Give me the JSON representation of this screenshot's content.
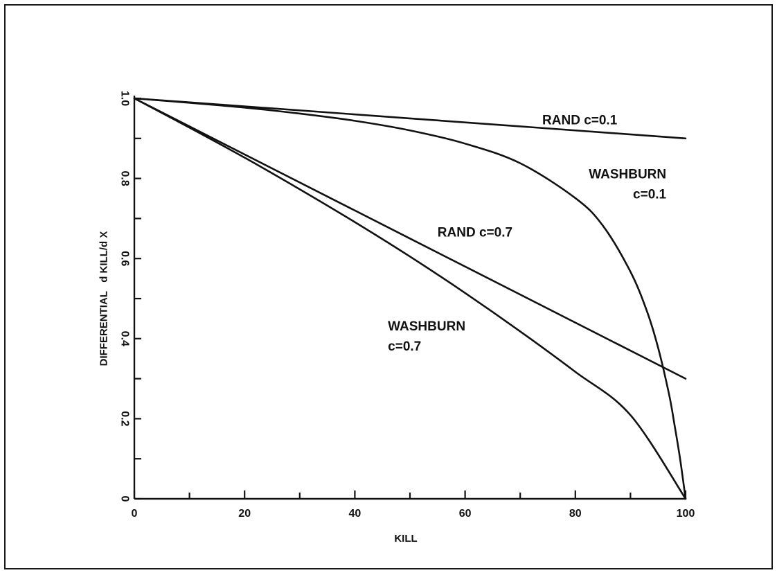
{
  "chart_data": {
    "type": "line",
    "xlabel": "KILL",
    "ylabel": "DIFFERENTIAL   d KILL/d X",
    "xlim": [
      0,
      100
    ],
    "ylim": [
      0,
      1.0
    ],
    "x_ticks": [
      0,
      20,
      40,
      60,
      80,
      100
    ],
    "x_tick_labels": [
      "0",
      "20",
      "40",
      "60",
      "80",
      "100"
    ],
    "x_minor_step": 10,
    "y_ticks": [
      0,
      0.2,
      0.4,
      0.6,
      0.8,
      1.0
    ],
    "y_tick_labels": [
      "0",
      "0.2",
      "0.4",
      "0.6",
      "0.8",
      "1.0"
    ],
    "y_minor_step": 0.1,
    "grid": false,
    "series": [
      {
        "name": "RAND c=0.1",
        "x": [
          0,
          100
        ],
        "y": [
          1.0,
          0.9
        ]
      },
      {
        "name": "RAND c=0.7",
        "x": [
          0,
          100
        ],
        "y": [
          1.0,
          0.3
        ]
      },
      {
        "name": "WASHBURN c=0.1",
        "x": [
          0,
          10,
          20,
          30,
          40,
          50,
          60,
          70,
          80,
          85,
          90,
          93,
          95,
          97,
          98,
          99,
          100
        ],
        "y": [
          1.0,
          0.989,
          0.977,
          0.962,
          0.944,
          0.92,
          0.887,
          0.838,
          0.751,
          0.682,
          0.567,
          0.468,
          0.378,
          0.261,
          0.184,
          0.1,
          0.0
        ]
      },
      {
        "name": "WASHBURN c=0.7",
        "x": [
          0,
          10,
          20,
          30,
          40,
          50,
          60,
          70,
          80,
          90,
          100
        ],
        "y": [
          1.0,
          0.927,
          0.852,
          0.773,
          0.691,
          0.605,
          0.514,
          0.418,
          0.317,
          0.209,
          0.0
        ]
      }
    ],
    "annotations": [
      {
        "lines": [
          "RAND c=0.1"
        ],
        "x": 74,
        "y": 0.935,
        "align": "start"
      },
      {
        "lines": [
          "WASHBURN",
          "c=0.1"
        ],
        "x": 96.5,
        "y": 0.8,
        "align": "end"
      },
      {
        "lines": [
          "RAND c=0.7"
        ],
        "x": 55,
        "y": 0.655,
        "align": "start"
      },
      {
        "lines": [
          "WASHBURN",
          "c=0.7"
        ],
        "x": 46,
        "y": 0.42,
        "align": "start"
      }
    ]
  }
}
